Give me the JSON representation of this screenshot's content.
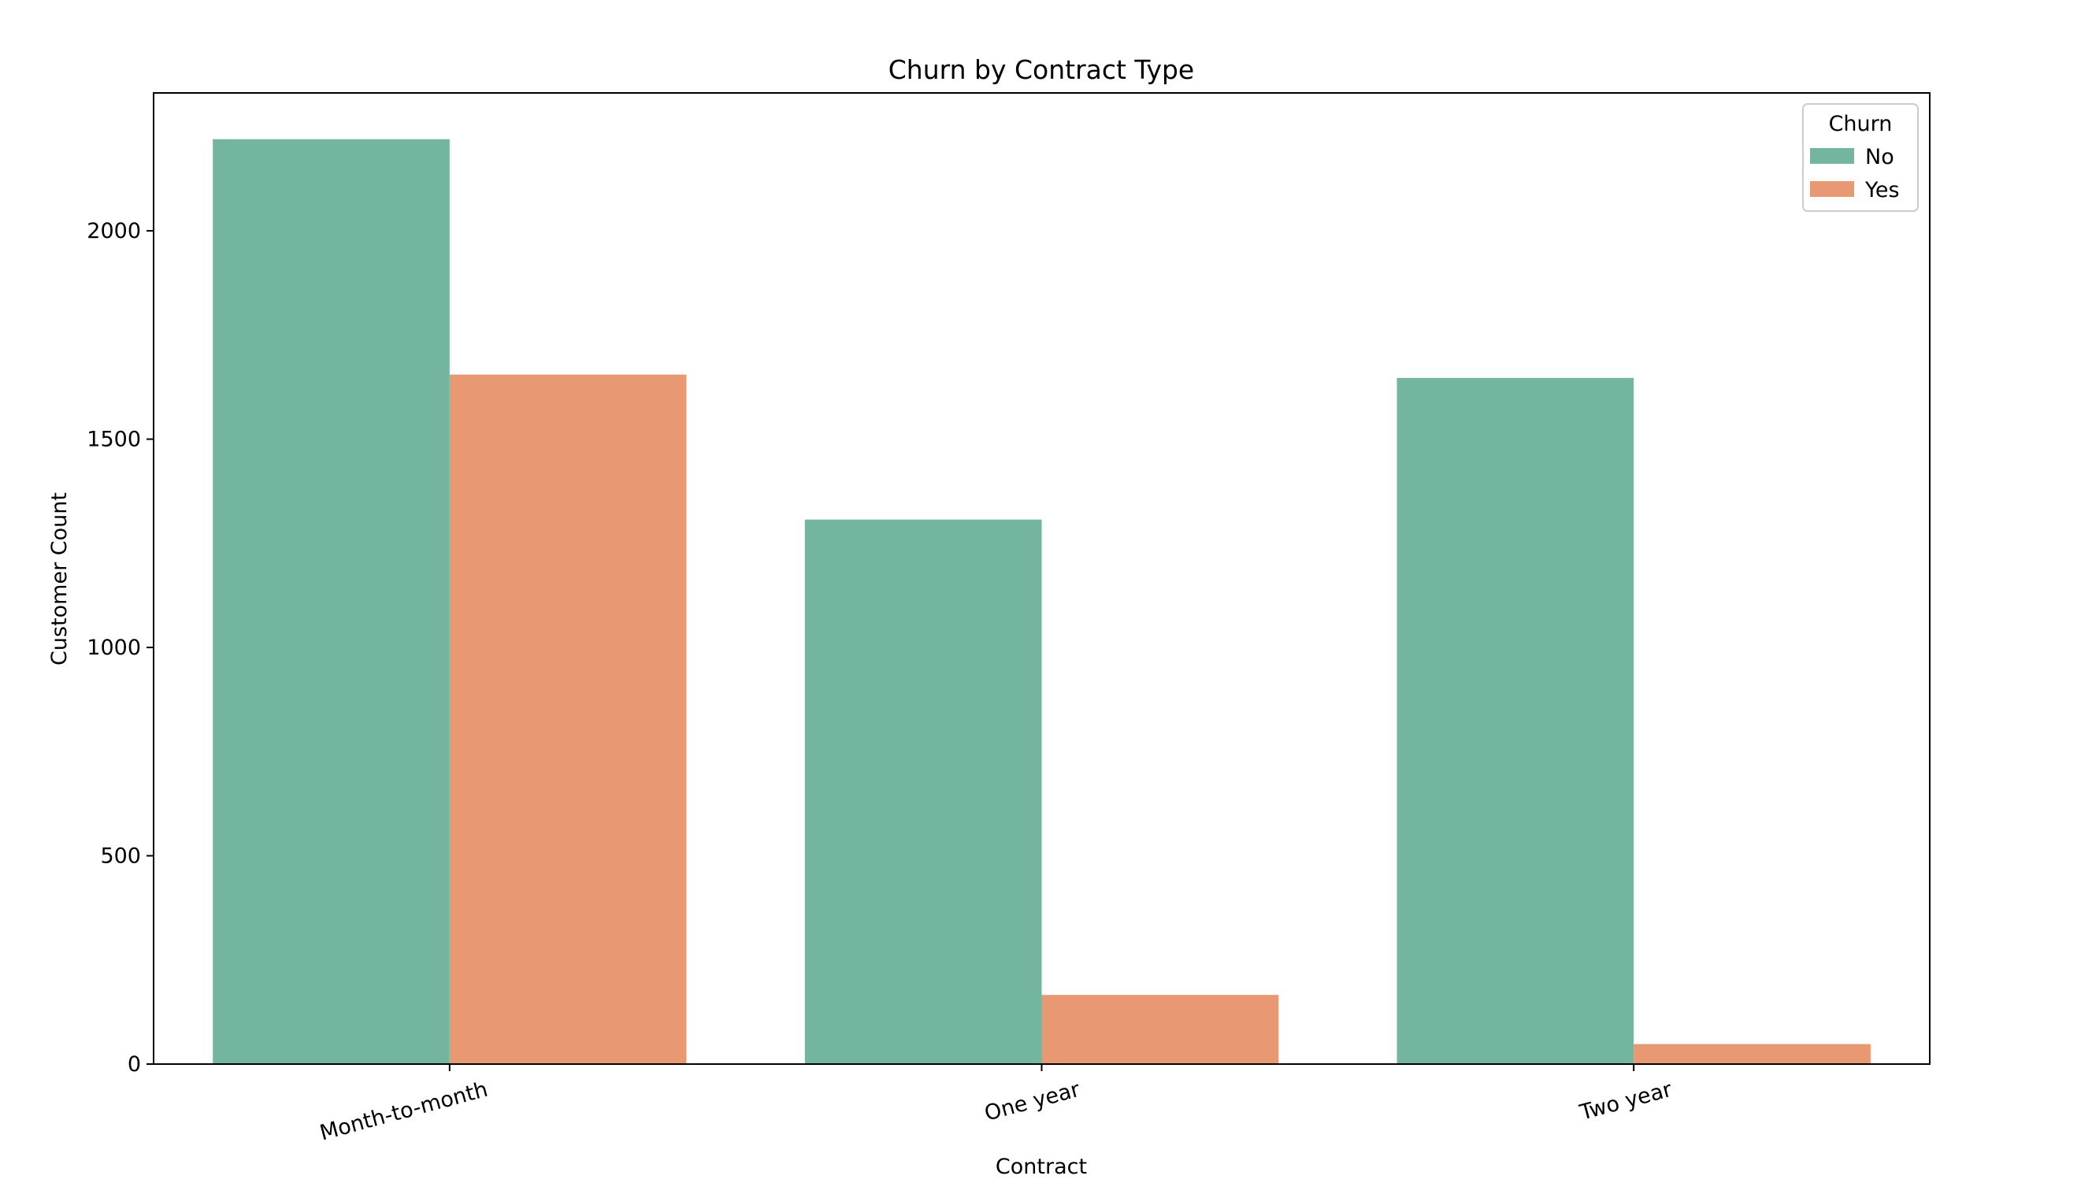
{
  "chart_data": {
    "type": "bar",
    "title": "Churn by Contract Type",
    "xlabel": "Contract",
    "ylabel": "Customer Count",
    "categories": [
      "Month-to-month",
      "One year",
      "Two year"
    ],
    "series": [
      {
        "name": "No",
        "values": [
          2220,
          1307,
          1647
        ],
        "color": "#74b5a0"
      },
      {
        "name": "Yes",
        "values": [
          1655,
          166,
          48
        ],
        "color": "#e99874"
      }
    ],
    "ylim": [
      0,
      2331
    ],
    "yticks": [
      0,
      500,
      1000,
      1500,
      2000
    ],
    "grid": false,
    "legend": {
      "title": "Churn",
      "placement": "top-right"
    }
  }
}
